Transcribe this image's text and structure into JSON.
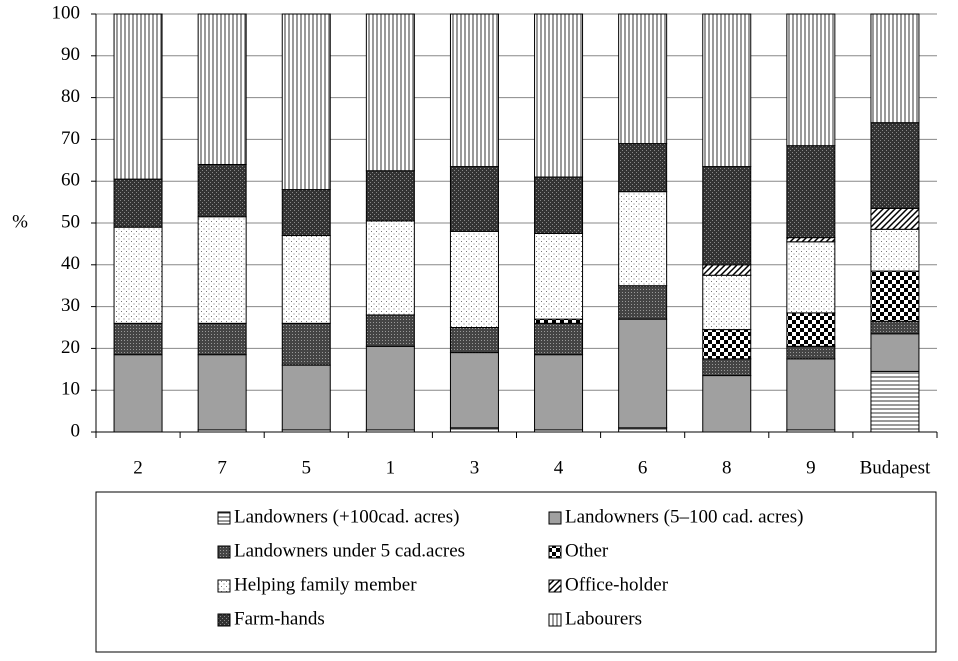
{
  "chart_data": {
    "type": "stacked-bar",
    "y_label": "%",
    "categories": [
      "2",
      "7",
      "5",
      "1",
      "3",
      "4",
      "6",
      "8",
      "9",
      "Budapest"
    ],
    "ylim": [
      0,
      100
    ],
    "yticks": [
      0,
      10,
      20,
      30,
      40,
      50,
      60,
      70,
      80,
      90,
      100
    ],
    "grid": true,
    "series": [
      {
        "name": "Landowners (+100cad. acres)",
        "pattern": "hlines",
        "values": [
          0,
          0.5,
          0.5,
          0.5,
          1,
          0.5,
          1,
          0,
          0.5,
          14.5
        ]
      },
      {
        "name": "Landowners (5–100 cad. acres)",
        "pattern": "gray",
        "values": [
          18.5,
          18,
          15.5,
          20,
          18,
          18,
          26,
          13.5,
          17,
          9
        ]
      },
      {
        "name": "Landowners under 5 cad.acres",
        "pattern": "dark",
        "values": [
          7.5,
          7.5,
          10,
          7.5,
          6,
          7.5,
          8,
          4,
          3,
          3
        ]
      },
      {
        "name": "Other",
        "pattern": "checker",
        "values": [
          0,
          0,
          0,
          0,
          0,
          1,
          0,
          7,
          8,
          12
        ]
      },
      {
        "name": "Helping family member",
        "pattern": "dots",
        "values": [
          23,
          25.5,
          21,
          22.5,
          23,
          20.5,
          22.5,
          13,
          17,
          10
        ]
      },
      {
        "name": "Office-holder",
        "pattern": "diag",
        "values": [
          0,
          0,
          0,
          0,
          0,
          0,
          0,
          2.5,
          1,
          5
        ]
      },
      {
        "name": "Farm-hands",
        "pattern": "dark2",
        "values": [
          11.5,
          12.5,
          11,
          12,
          15.5,
          13.5,
          11.5,
          23.5,
          22,
          20.5
        ]
      },
      {
        "name": "Labourers",
        "pattern": "vlines",
        "values": [
          39.5,
          36,
          42,
          37.5,
          36.5,
          39,
          31,
          36.5,
          31.5,
          26
        ]
      }
    ]
  }
}
